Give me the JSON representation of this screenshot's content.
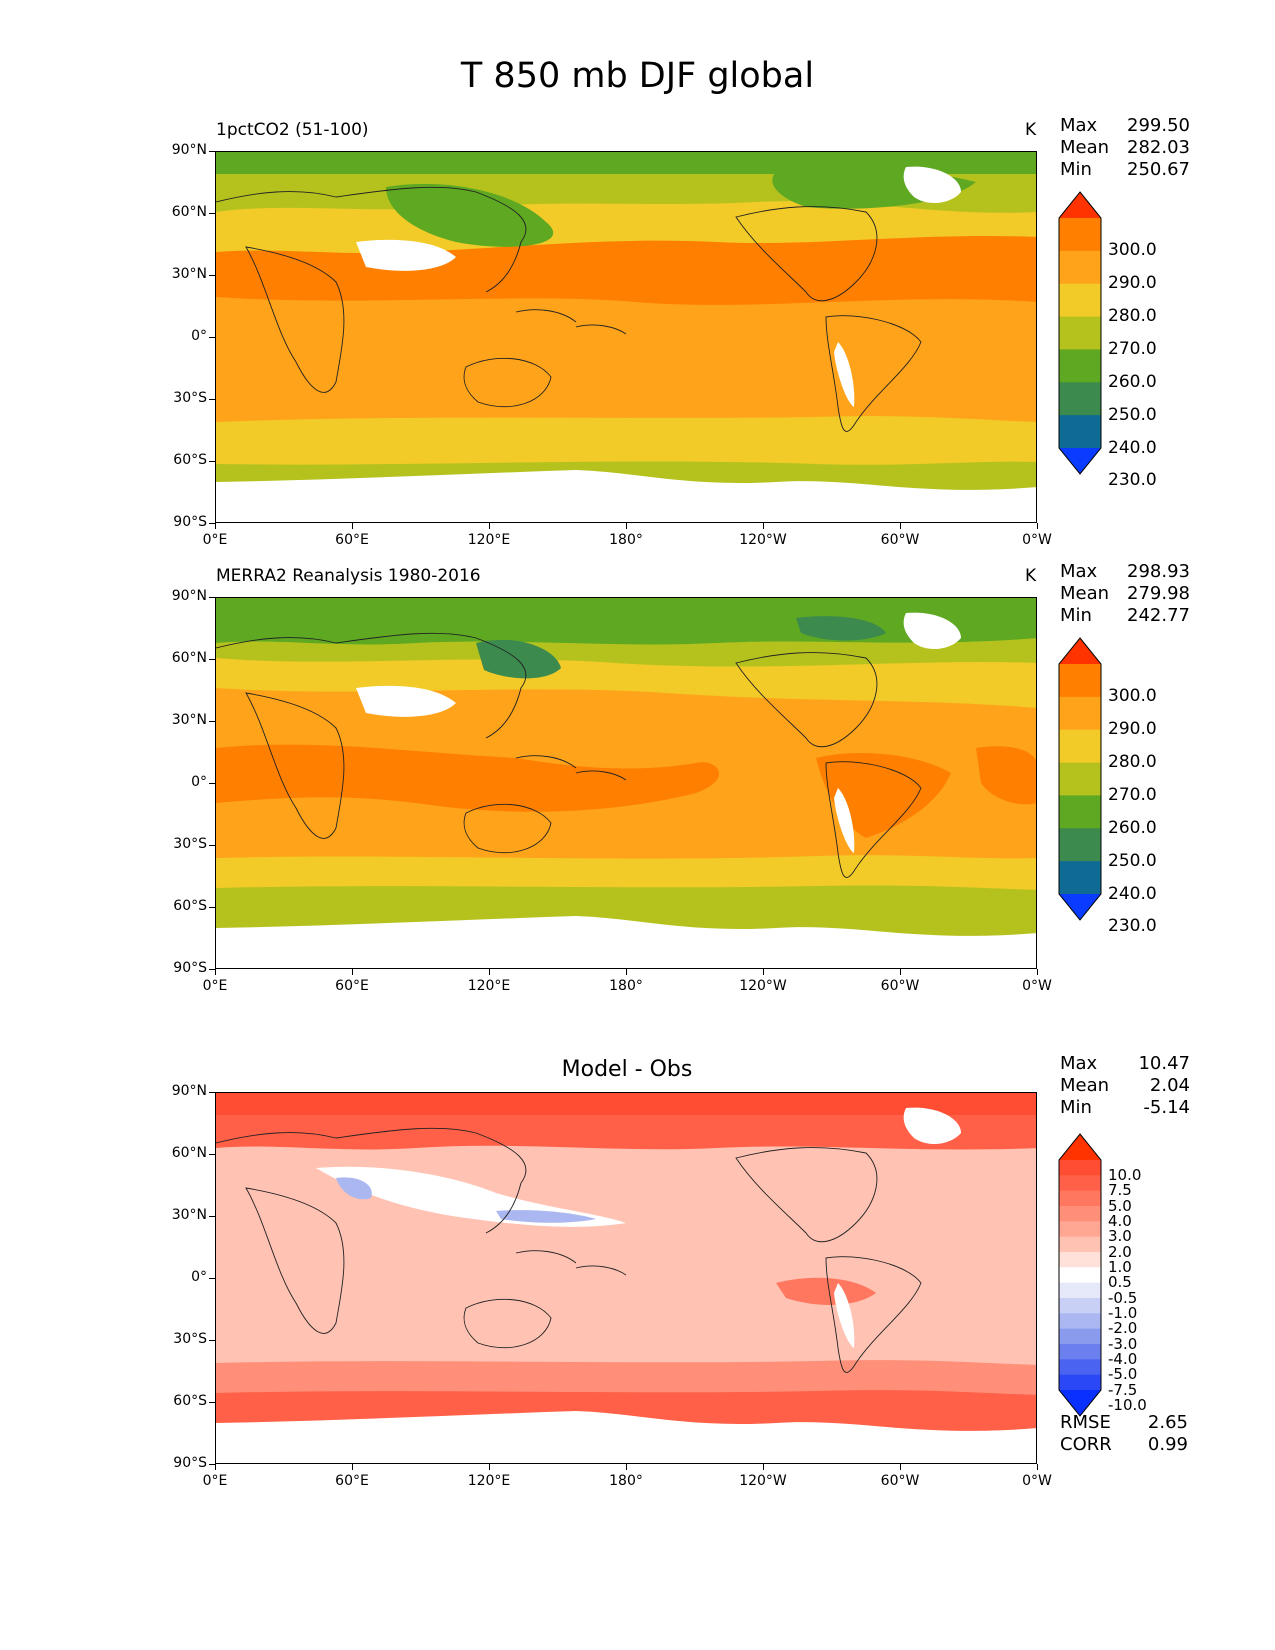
{
  "figure": {
    "title": "T 850 mb DJF global"
  },
  "axes": {
    "lat_labels": [
      "90°N",
      "60°N",
      "30°N",
      "0°",
      "30°S",
      "60°S",
      "90°S"
    ],
    "lon_labels": [
      "0°E",
      "60°E",
      "120°E",
      "180°",
      "120°W",
      "60°W",
      "0°W"
    ]
  },
  "panels": [
    {
      "title": "1pctCO2 (51-100)",
      "units": "K",
      "stats": {
        "max_label": "Max",
        "max": "299.50",
        "mean_label": "Mean",
        "mean": "282.03",
        "min_label": "Min",
        "min": "250.67"
      }
    },
    {
      "title": "MERRA2 Reanalysis 1980-2016",
      "units": "K",
      "stats": {
        "max_label": "Max",
        "max": "298.93",
        "mean_label": "Mean",
        "mean": "279.98",
        "min_label": "Min",
        "min": "242.77"
      }
    },
    {
      "title": "Model - Obs",
      "units": "",
      "stats": {
        "max_label": "Max",
        "max": "10.47",
        "mean_label": "Mean",
        "mean": "2.04",
        "min_label": "Min",
        "min": "-5.14"
      },
      "metrics": {
        "rmse_label": "RMSE",
        "rmse": "2.65",
        "corr_label": "CORR",
        "corr": "0.99"
      }
    }
  ],
  "colorbars": {
    "temperature": {
      "labels": [
        "300.0",
        "290.0",
        "280.0",
        "270.0",
        "260.0",
        "250.0",
        "240.0",
        "230.0"
      ],
      "colors": [
        "#ff3300",
        "#ff7f00",
        "#ffa31a",
        "#f2cb28",
        "#b5c21e",
        "#5ea822",
        "#3c8a4e",
        "#0f6b96",
        "#0a3cff"
      ]
    },
    "difference": {
      "labels": [
        "10.0",
        "7.5",
        "5.0",
        "4.0",
        "3.0",
        "2.0",
        "1.0",
        "0.5",
        "-0.5",
        "-1.0",
        "-2.0",
        "-3.0",
        "-4.0",
        "-5.0",
        "-7.5",
        "-10.0"
      ],
      "colors": [
        "#ff3300",
        "#ff4d33",
        "#ff6047",
        "#ff775f",
        "#ff8f78",
        "#ffa793",
        "#ffc2b3",
        "#ffe1d9",
        "#ffffff",
        "#e6e9fa",
        "#c9d0f5",
        "#aab7f1",
        "#8a9bee",
        "#6b80ee",
        "#4a63f0",
        "#2a48f5",
        "#0a30ff"
      ]
    }
  },
  "map_colors": {
    "bg_warm": "#ff7f00",
    "bg_mid": "#ffa31a",
    "band_cold": "#f2cb28",
    "band_colder": "#b5c21e",
    "band_arctic": "#5ea822",
    "band_deep": "#3c8a4e",
    "diff_bg": "#ffc2b3",
    "diff_strong": "#ff6047",
    "diff_top": "#ff4d33",
    "diff_white": "#ffffff",
    "diff_blue": "#aab7f1"
  }
}
